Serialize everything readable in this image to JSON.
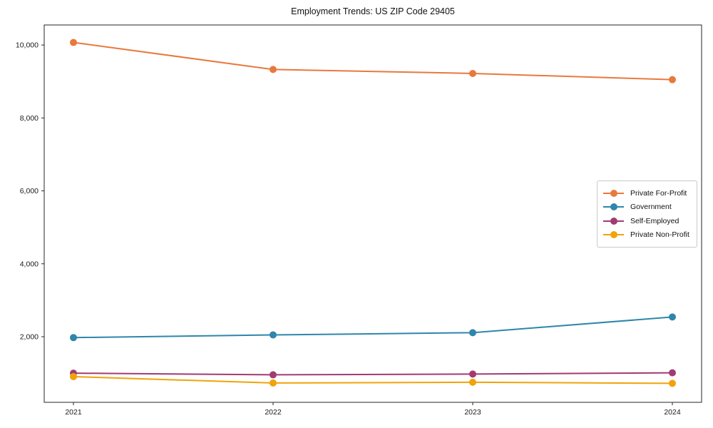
{
  "chart_data": {
    "type": "line",
    "title": "Employment Trends: US ZIP Code 29405",
    "xlabel": "",
    "ylabel": "",
    "x": [
      2021,
      2022,
      2023,
      2024
    ],
    "x_tick_labels": [
      "2021",
      "2022",
      "2023",
      "2024"
    ],
    "yticks": [
      2000,
      4000,
      6000,
      8000,
      10000
    ],
    "ytick_labels": [
      "2,000",
      "4,000",
      "6,000",
      "8,000",
      "10,000"
    ],
    "ylim": [
      200,
      10550
    ],
    "grid": false,
    "marker": "circle",
    "line_width": 2,
    "series": [
      {
        "name": "Private For-Profit",
        "color": "#E8793D",
        "values": [
          10070,
          9330,
          9220,
          9050
        ]
      },
      {
        "name": "Government",
        "color": "#2E86AB",
        "values": [
          1975,
          2050,
          2110,
          2540
        ]
      },
      {
        "name": "Self-Employed",
        "color": "#A23B72",
        "values": [
          1000,
          955,
          975,
          1010
        ]
      },
      {
        "name": "Private Non-Profit",
        "color": "#F0A30A",
        "values": [
          905,
          730,
          750,
          720
        ]
      }
    ],
    "legend": {
      "position": "center-right",
      "entries": [
        "Private For-Profit",
        "Government",
        "Self-Employed",
        "Private Non-Profit"
      ]
    },
    "axis_color": "#262626",
    "tick_label_color": "#1a1a1a"
  }
}
